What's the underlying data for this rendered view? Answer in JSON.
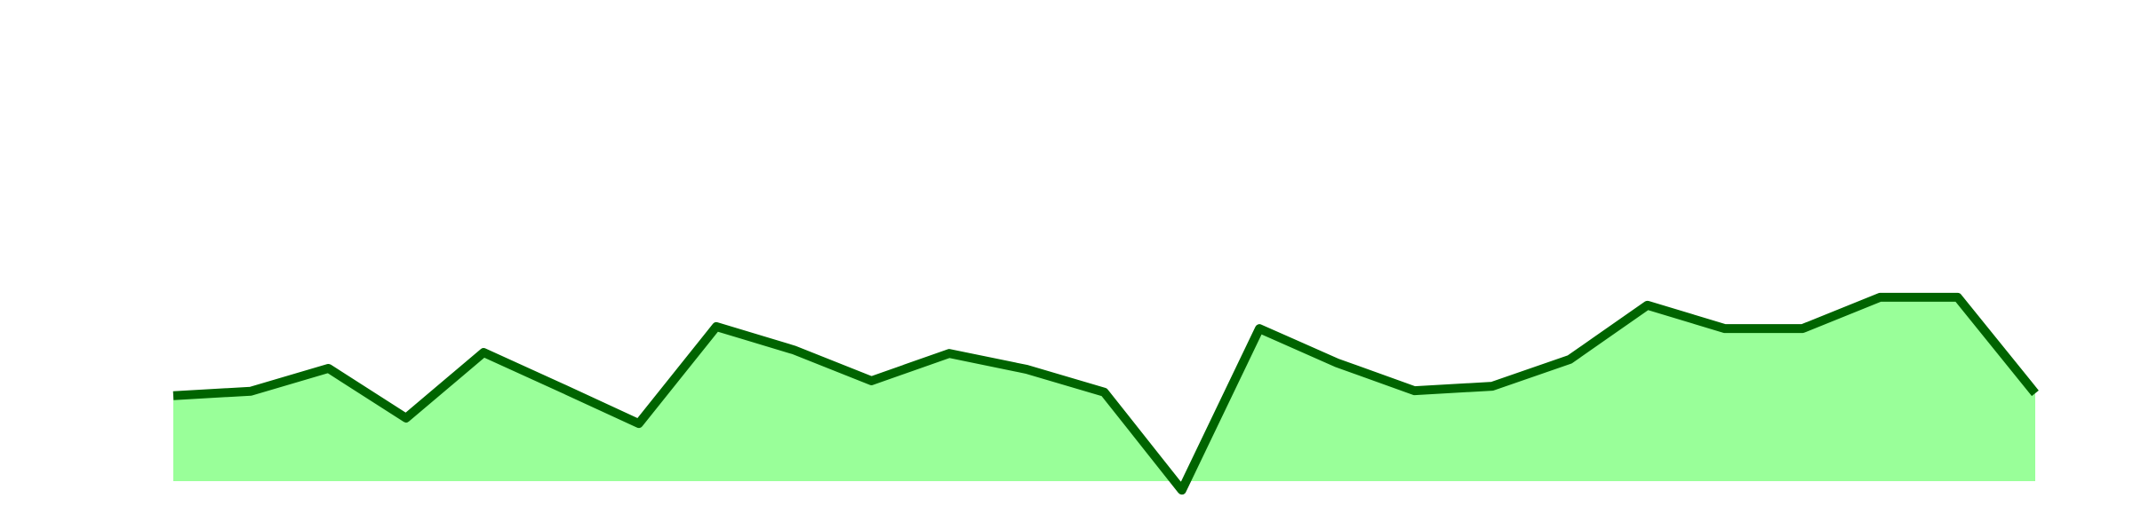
{
  "chart_data": {
    "type": "area",
    "values": [
      20.4,
      21.3,
      25.9,
      15.9,
      29.1,
      22.0,
      14.8,
      34.3,
      29.6,
      23.4,
      28.9,
      25.7,
      21.1,
      1.4,
      33.9,
      27.0,
      21.4,
      22.3,
      27.7,
      38.6,
      33.9,
      33.9,
      40.2,
      40.2,
      20.9
    ],
    "ylim": [
      0,
      100
    ],
    "color": "#006400",
    "fill": "#99ff99"
  }
}
